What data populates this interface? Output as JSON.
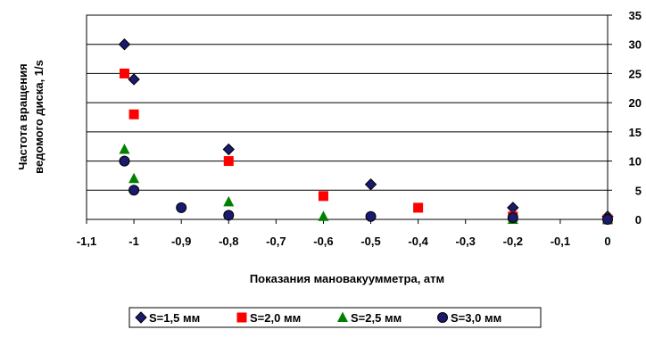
{
  "chart_data": {
    "type": "scatter",
    "title": "",
    "xlabel": "Показания мановакуумметра, атм",
    "ylabel_line1": "Частота вращения",
    "ylabel_line2": "ведомого диска, 1/s",
    "xlim": [
      -1.1,
      0
    ],
    "ylim": [
      0,
      35
    ],
    "x_ticks": [
      "-1,1",
      "-1",
      "-0,9",
      "-0,8",
      "-0,7",
      "-0,6",
      "-0,5",
      "-0,4",
      "-0,3",
      "-0,2",
      "-0,1",
      "0"
    ],
    "x_tick_values": [
      -1.1,
      -1.0,
      -0.9,
      -0.8,
      -0.7,
      -0.6,
      -0.5,
      -0.4,
      -0.3,
      -0.2,
      -0.1,
      0
    ],
    "y_ticks": [
      "0",
      "5",
      "10",
      "15",
      "20",
      "25",
      "30",
      "35"
    ],
    "y_tick_values": [
      0,
      5,
      10,
      15,
      20,
      25,
      30,
      35
    ],
    "grid": "horizontal",
    "y_axis_side": "right",
    "legend_position": "bottom",
    "series": [
      {
        "name": "S=1,5 мм",
        "marker": "diamond",
        "color": "#1a1a6e",
        "points": [
          [
            -1.02,
            30
          ],
          [
            -1.0,
            24
          ],
          [
            -0.8,
            12
          ],
          [
            -0.5,
            6
          ],
          [
            -0.2,
            2
          ],
          [
            0,
            0.5
          ]
        ]
      },
      {
        "name": "S=2,0 мм",
        "marker": "square",
        "color": "#ff0000",
        "points": [
          [
            -1.02,
            25
          ],
          [
            -1.0,
            18
          ],
          [
            -0.8,
            10
          ],
          [
            -0.6,
            4
          ],
          [
            -0.4,
            2
          ],
          [
            -0.2,
            0.5
          ],
          [
            0,
            0
          ]
        ]
      },
      {
        "name": "S=2,5 мм",
        "marker": "triangle",
        "color": "#008000",
        "points": [
          [
            -1.02,
            12
          ],
          [
            -1.0,
            7
          ],
          [
            -0.8,
            3
          ],
          [
            -0.6,
            0.5
          ],
          [
            -0.2,
            0
          ],
          [
            0,
            0
          ]
        ]
      },
      {
        "name": "S=3,0 мм",
        "marker": "circle",
        "color": "#1a1a6e",
        "points": [
          [
            -1.02,
            10
          ],
          [
            -1.0,
            5
          ],
          [
            -0.9,
            2
          ],
          [
            -0.8,
            0.7
          ],
          [
            -0.5,
            0.5
          ],
          [
            -0.2,
            0.3
          ],
          [
            0,
            0
          ]
        ]
      }
    ]
  }
}
